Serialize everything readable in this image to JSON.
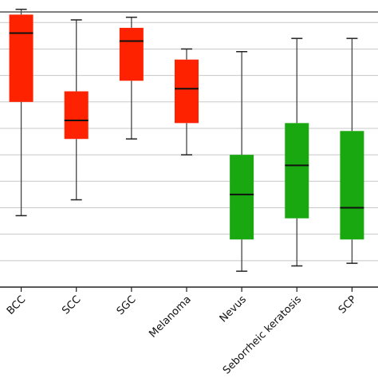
{
  "chart_data": {
    "type": "box",
    "title": "",
    "xlabel": "",
    "ylabel": "",
    "ylim": [
      0,
      10.4
    ],
    "grid": "horizontal",
    "y_tick_labels_visible": false,
    "categories": [
      "BCC",
      "SCC",
      "SGC",
      "Melanoma",
      "Nevus",
      "Seborrheic keratosis",
      "SCP"
    ],
    "boxes": [
      {
        "category": "BCC",
        "color": "#ff2200",
        "whisker_low": 2.7,
        "q1": 7.0,
        "median": 9.6,
        "q3": 10.3,
        "whisker_high": 10.5
      },
      {
        "category": "SCC",
        "color": "#ff2200",
        "whisker_low": 3.3,
        "q1": 5.6,
        "median": 6.3,
        "q3": 7.4,
        "whisker_high": 10.1
      },
      {
        "category": "SGC",
        "color": "#ff2200",
        "whisker_low": 5.6,
        "q1": 7.8,
        "median": 9.3,
        "q3": 9.8,
        "whisker_high": 10.2
      },
      {
        "category": "Melanoma",
        "color": "#ff2200",
        "whisker_low": 5.0,
        "q1": 6.2,
        "median": 7.5,
        "q3": 8.6,
        "whisker_high": 9.0
      },
      {
        "category": "Nevus",
        "color": "#19a810",
        "whisker_low": 0.6,
        "q1": 1.8,
        "median": 3.5,
        "q3": 5.0,
        "whisker_high": 8.9
      },
      {
        "category": "Seborrheic keratosis",
        "color": "#19a810",
        "whisker_low": 0.8,
        "q1": 2.6,
        "median": 4.6,
        "q3": 6.2,
        "whisker_high": 9.4
      },
      {
        "category": "SCP",
        "color": "#19a810",
        "whisker_low": 0.9,
        "q1": 1.8,
        "median": 3.0,
        "q3": 5.9,
        "whisker_high": 9.4
      }
    ]
  }
}
